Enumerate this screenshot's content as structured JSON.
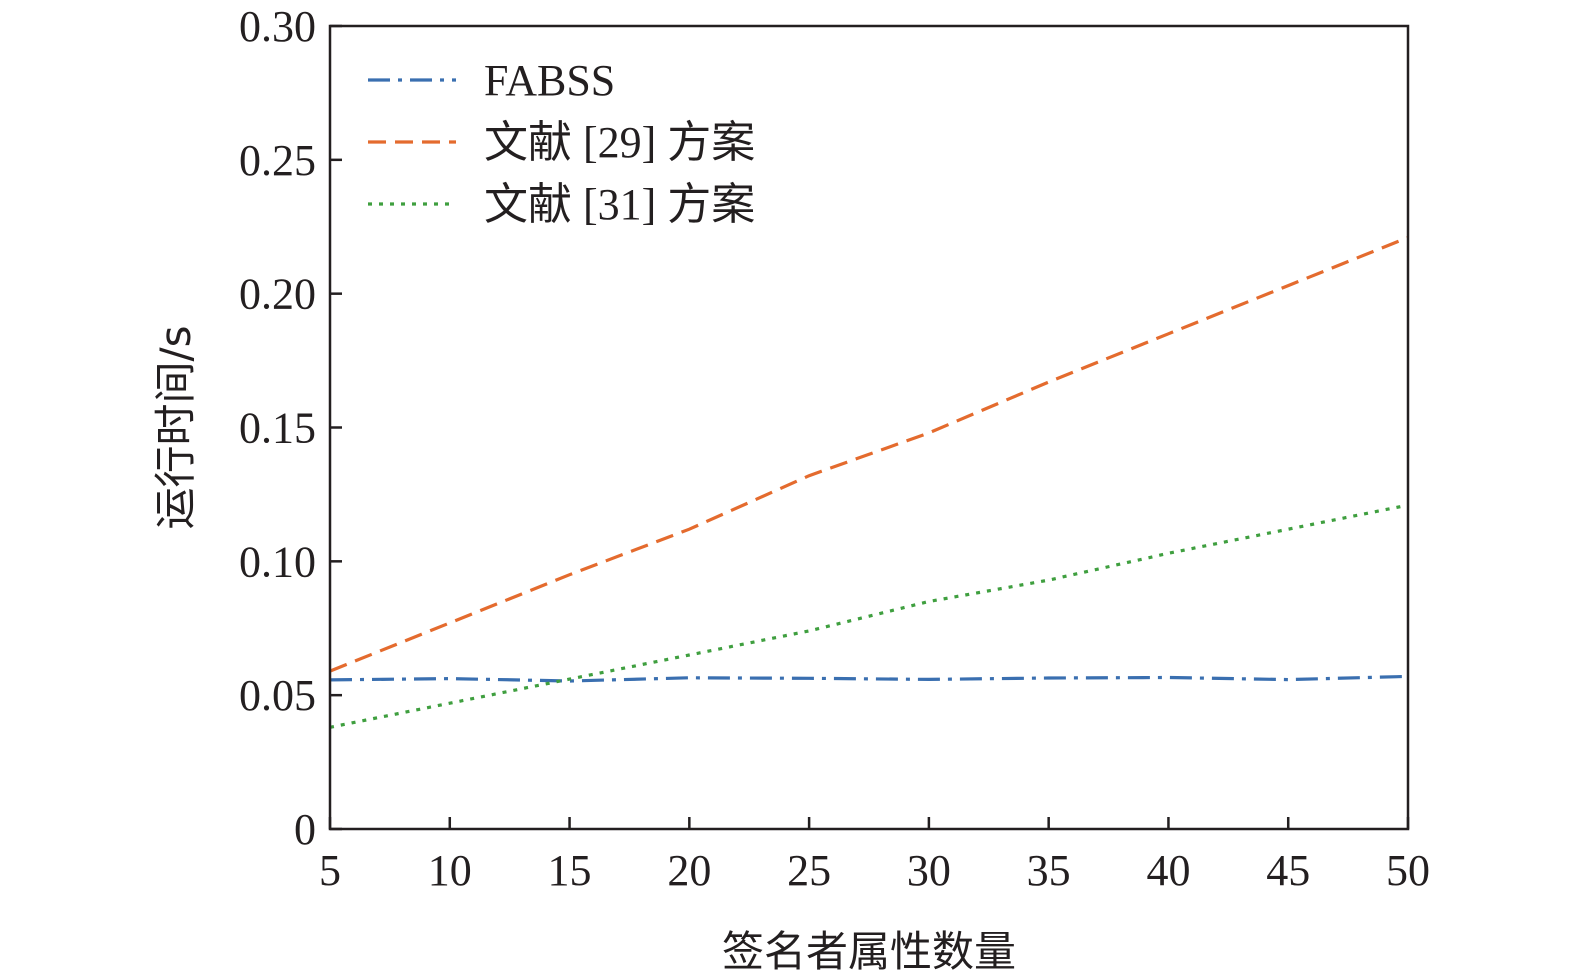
{
  "chart_data": {
    "type": "line",
    "title": "",
    "xlabel": "签名者属性数量",
    "ylabel": "运行时间/s",
    "xlim": [
      5,
      50
    ],
    "ylim": [
      0,
      0.3
    ],
    "xticks": [
      5,
      10,
      15,
      20,
      25,
      30,
      35,
      40,
      45,
      50
    ],
    "xtick_labels": [
      "5",
      "10",
      "15",
      "20",
      "25",
      "30",
      "35",
      "40",
      "45",
      "50"
    ],
    "yticks": [
      0,
      0.05,
      0.1,
      0.15,
      0.2,
      0.25,
      0.3
    ],
    "ytick_labels": [
      "0",
      "0.05",
      "0.10",
      "0.15",
      "0.20",
      "0.25",
      "0.30"
    ],
    "grid": false,
    "legend_position": "top-left",
    "x": [
      5,
      10,
      15,
      20,
      25,
      30,
      35,
      40,
      45,
      50
    ],
    "series": [
      {
        "name": "FABSS",
        "color": "#3a6fb0",
        "dash": "dash-dot",
        "values": [
          0.0557,
          0.0562,
          0.0553,
          0.0565,
          0.0563,
          0.0559,
          0.0564,
          0.0566,
          0.0558,
          0.057
        ]
      },
      {
        "name": "文献 [29] 方案",
        "color": "#e46b2e",
        "dash": "dashed",
        "values": [
          0.059,
          0.077,
          0.095,
          0.112,
          0.132,
          0.148,
          0.167,
          0.185,
          0.203,
          0.221
        ]
      },
      {
        "name": "文献 [31] 方案",
        "color": "#3f9f3f",
        "dash": "dotted",
        "values": [
          0.038,
          0.047,
          0.056,
          0.065,
          0.074,
          0.085,
          0.093,
          0.103,
          0.112,
          0.121
        ]
      }
    ]
  }
}
